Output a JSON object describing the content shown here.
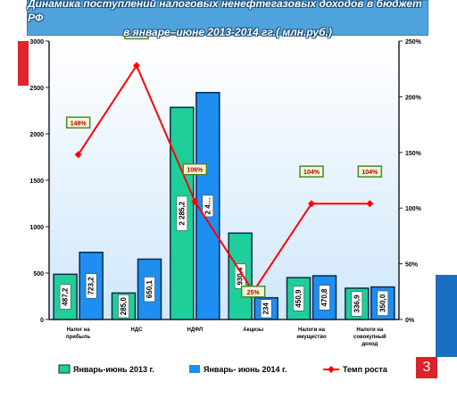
{
  "header": {
    "title_line1": "Динамика поступлений налоговых ненефтегазовых доходов в бюджет РФ",
    "title_line2": "в январе–июне 2013-2014 гг.( млн.руб.)"
  },
  "slide_number": "3",
  "colors": {
    "series_2013": "#1fcf9a",
    "series_2014": "#1e8ef0",
    "growth_line": "#ff0000",
    "title_bg": "#4fa3dd",
    "badge_border": "#4a8a2a",
    "badge_bg": "#eef6d6",
    "badge_text": "#c00000"
  },
  "chart_data": {
    "type": "bar",
    "categories": [
      "Налог на прибыль",
      "НДС",
      "НДФЛ",
      "Акцизы",
      "Налоги на имущество",
      "Налоги на совокупный доход"
    ],
    "category_lines": [
      [
        "Налог на",
        "прибыль"
      ],
      [
        "НДС"
      ],
      [
        "НДФЛ"
      ],
      [
        "Акцизы"
      ],
      [
        "Налоги на",
        "имущество"
      ],
      [
        "Налоги на",
        "совокупный",
        "доход"
      ]
    ],
    "series": [
      {
        "name": "Январь-июнь 2013 г.",
        "values": [
          487.2,
          285.0,
          2285.2,
          930.4,
          450.9,
          336.9
        ],
        "labels": [
          "487,2",
          "285,0",
          "2 285,2",
          "930,4",
          "450,9",
          "336,9"
        ]
      },
      {
        "name": "Январь- июнь 2014 г.",
        "values": [
          723.2,
          650.1,
          2445.0,
          234.0,
          470.8,
          350.0
        ],
        "labels": [
          "723,2",
          "650,1",
          "2 4…",
          "234",
          "470,8",
          "350,0"
        ]
      }
    ],
    "line": {
      "name": "Темп роста",
      "values": [
        148,
        228,
        106,
        25,
        104,
        104
      ],
      "labels": [
        "148%",
        "228%",
        "106%",
        "25%",
        "104%",
        "104%"
      ],
      "axis": "right"
    },
    "y_left": {
      "min": 0,
      "max": 3000,
      "ticks": [
        0,
        500,
        1000,
        1500,
        2000,
        2500,
        3000
      ],
      "tick_labels": [
        "0",
        "500",
        "1000",
        "1500",
        "2000",
        "2500",
        "3000"
      ]
    },
    "y_right": {
      "min": 0,
      "max": 250,
      "ticks": [
        0,
        50,
        100,
        150,
        200,
        250
      ],
      "tick_labels": [
        "0%",
        "50%",
        "100%",
        "150%",
        "200%",
        "250%"
      ]
    },
    "grid": false,
    "legend": "bottom"
  }
}
